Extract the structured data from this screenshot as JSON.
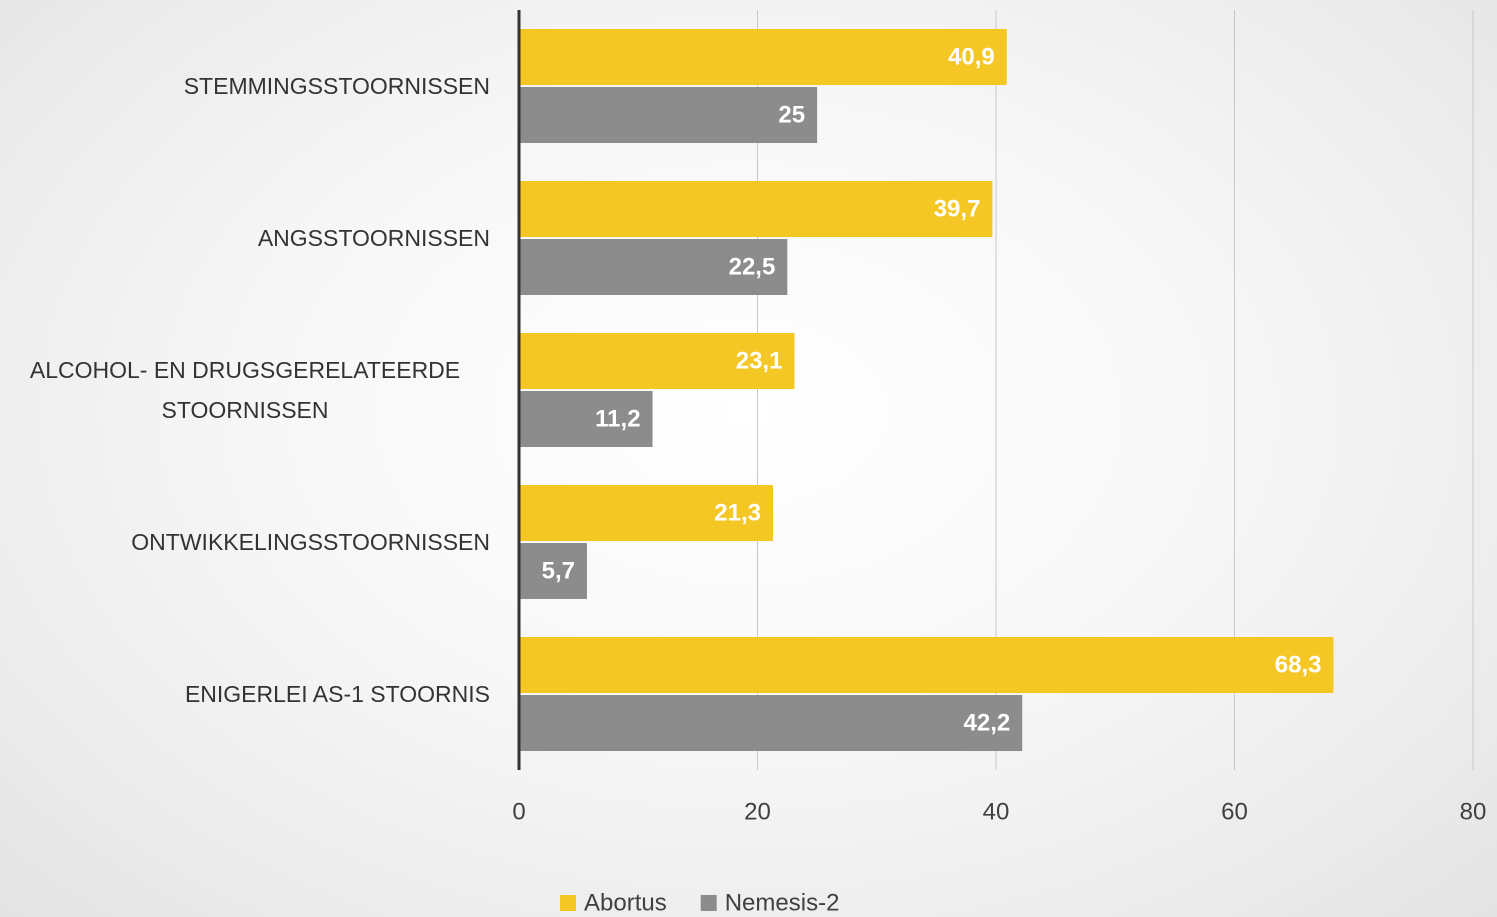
{
  "chart_data": {
    "type": "bar",
    "orientation": "horizontal",
    "categories": [
      "STEMMINGSSTOORNISSEN",
      "ANGSSTOORNISSEN",
      "ALCOHOL- EN DRUGSGERELATEERDE STOORNISSEN",
      "ONTWIKKELINGSSTOORNISSEN",
      "ENIGERLEI AS-1 STOORNIS"
    ],
    "series": [
      {
        "name": "Abortus",
        "color": "#f5c724",
        "values": [
          40.9,
          39.7,
          23.1,
          21.3,
          68.3
        ],
        "value_labels": [
          "40,9",
          "39,7",
          "23,1",
          "21,3",
          "68,3"
        ]
      },
      {
        "name": "Nemesis-2",
        "color": "#8c8c8c",
        "values": [
          25,
          22.5,
          11.2,
          5.7,
          42.2
        ],
        "value_labels": [
          "25",
          "22,5",
          "11,2",
          "5,7",
          "42,2"
        ]
      }
    ],
    "xlim": [
      0,
      80
    ],
    "xticks": [
      0,
      20,
      40,
      60,
      80
    ],
    "grid": true,
    "legend": "bottom"
  }
}
